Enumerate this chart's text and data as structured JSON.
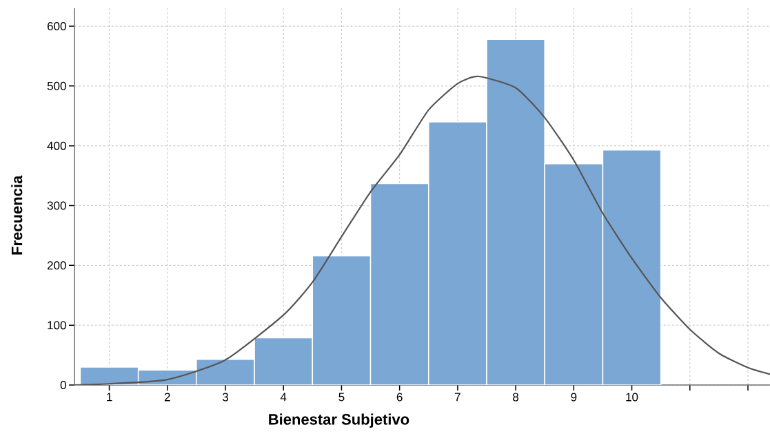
{
  "chart_data": {
    "type": "histogram",
    "xlabel": "Bienestar Subjetivo",
    "ylabel": "Frecuencia",
    "series": [
      {
        "color": "#7ba7d4",
        "bins": [
          0.5,
          1.5,
          2.5,
          3.5,
          4.5,
          5.5,
          6.5,
          7.5,
          8.5,
          9.5,
          10.5
        ],
        "values": [
          30,
          25,
          43,
          79,
          216,
          337,
          440,
          578,
          370,
          393
        ]
      },
      {
        "type": "line",
        "color": "#555555",
        "x": [
          0.4,
          1,
          2,
          3,
          4,
          4.5,
          5,
          5.5,
          6,
          6.5,
          7,
          7.36,
          8,
          8.5,
          9,
          9.5,
          10,
          10.5,
          11,
          11.5,
          12,
          12.38
        ],
        "values": [
          0,
          2,
          9,
          42,
          117,
          172,
          248,
          323,
          385,
          460,
          504,
          516,
          497,
          447,
          376,
          287,
          212,
          146,
          93,
          53,
          29,
          18
        ]
      }
    ],
    "xlim": [
      0.4,
      12.38
    ],
    "ylim": [
      0,
      630
    ],
    "xticks": [
      1,
      2,
      3,
      4,
      5,
      6,
      7,
      8,
      9,
      10,
      {
        "value": 11,
        "label": null
      },
      {
        "value": 12,
        "label": null
      }
    ],
    "yticks": [
      0,
      100,
      200,
      300,
      400,
      500,
      600
    ],
    "grid": true,
    "line_style": "solid",
    "marker": "none"
  }
}
